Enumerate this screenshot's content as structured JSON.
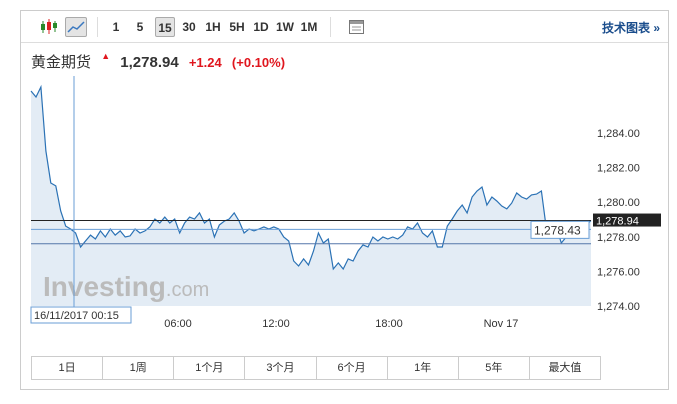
{
  "toolbar": {
    "intervals": [
      "1",
      "5",
      "15",
      "30",
      "1H",
      "5H",
      "1D",
      "1W",
      "1M"
    ],
    "active_interval": "15",
    "tech_chart_label": "技术图表 »",
    "icons": [
      "candlestick-icon",
      "line-chart-icon",
      "table-icon"
    ]
  },
  "header": {
    "name": "黄金期货",
    "price": "1,278.94",
    "change": "+1.24",
    "change_pct": "(+0.10%)",
    "up_color": "#e0161e"
  },
  "chart_data": {
    "type": "area",
    "ylim": [
      1274,
      1286.7
    ],
    "yticks": [
      "1,274.00",
      "1,276.00",
      "1,278.00",
      "1,280.00",
      "1,282.00",
      "1,284.00"
    ],
    "xticks": [
      "06:00",
      "12:00",
      "18:00",
      "Nov 17"
    ],
    "last_price_label": "1,278.94",
    "cursor_price_label": "1,278.43",
    "cursor_time_label": "16/11/2017 00:15",
    "watermark": "Investing.com",
    "line_color": "#2b72b5",
    "values": [
      1286.43,
      1286.08,
      1286.66,
      1282.96,
      1281.11,
      1280.94,
      1279.49,
      1278.62,
      1278.45,
      1278.22,
      1277.41,
      1277.76,
      1278.1,
      1277.87,
      1278.34,
      1277.99,
      1278.45,
      1278.1,
      1278.34,
      1277.99,
      1278.05,
      1278.45,
      1278.22,
      1278.34,
      1278.57,
      1279.03,
      1278.8,
      1279.14,
      1278.8,
      1279.03,
      1278.22,
      1278.8,
      1279.14,
      1279.03,
      1279.38,
      1278.8,
      1279.03,
      1277.99,
      1278.68,
      1278.91,
      1279.03,
      1279.38,
      1278.91,
      1278.22,
      1278.45,
      1278.34,
      1278.45,
      1278.57,
      1278.45,
      1278.57,
      1278.45,
      1277.99,
      1277.76,
      1276.6,
      1276.31,
      1276.72,
      1276.37,
      1277.18,
      1278.22,
      1277.64,
      1277.87,
      1276.14,
      1276.49,
      1276.14,
      1276.72,
      1276.6,
      1277.18,
      1277.53,
      1277.41,
      1277.99,
      1277.76,
      1277.99,
      1277.87,
      1277.99,
      1277.87,
      1278.1,
      1278.57,
      1278.45,
      1278.8,
      1278.22,
      1277.99,
      1278.34,
      1277.41,
      1277.41,
      1278.62,
      1279.03,
      1279.49,
      1279.84,
      1279.38,
      1280.3,
      1280.65,
      1280.88,
      1279.84,
      1280.3,
      1280.07,
      1279.78,
      1279.61,
      1279.95,
      1280.53,
      1280.3,
      1280.18,
      1280.42,
      1280.47,
      1280.65,
      1278.45,
      1278.34,
      1278.57,
      1277.64,
      1277.99,
      1278.34,
      1278.45,
      1278.68,
      1278.68,
      1278.94
    ],
    "lines": {
      "last_price": 1278.94,
      "cursor_price": 1278.43,
      "reference": 1277.6
    }
  },
  "ranges": [
    "1日",
    "1周",
    "1个月",
    "3个月",
    "6个月",
    "1年",
    "5年",
    "最大值"
  ]
}
